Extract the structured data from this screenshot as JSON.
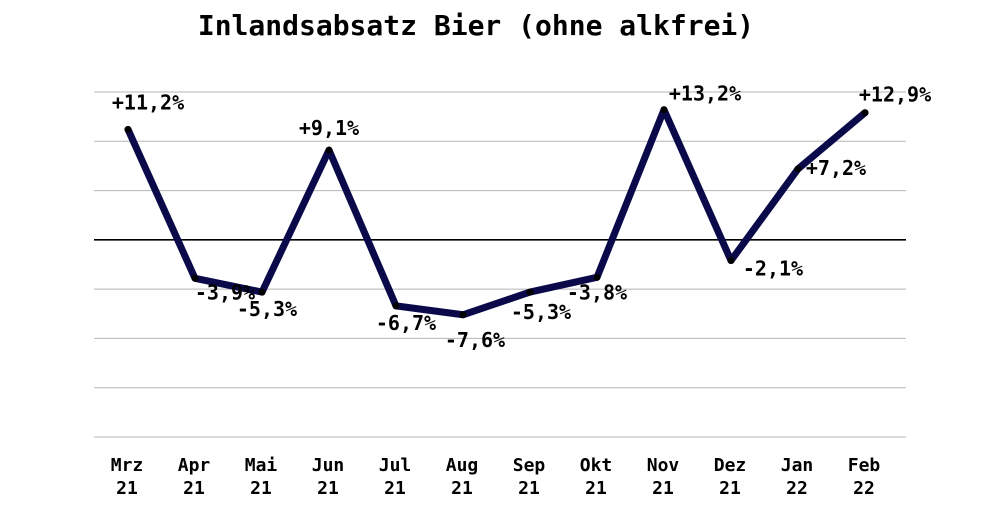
{
  "chart_data": {
    "type": "line",
    "title": "Inlandsabsatz Bier (ohne alkfrei)",
    "categories": [
      [
        "Mrz",
        "21"
      ],
      [
        "Apr",
        "21"
      ],
      [
        "Mai",
        "21"
      ],
      [
        "Jun",
        "21"
      ],
      [
        "Jul",
        "21"
      ],
      [
        "Aug",
        "21"
      ],
      [
        "Sep",
        "21"
      ],
      [
        "Okt",
        "21"
      ],
      [
        "Nov",
        "21"
      ],
      [
        "Dez",
        "21"
      ],
      [
        "Jan",
        "22"
      ],
      [
        "Feb",
        "22"
      ]
    ],
    "values": [
      11.2,
      -3.9,
      -5.3,
      9.1,
      -6.7,
      -7.6,
      -5.3,
      -3.8,
      13.2,
      -2.1,
      7.2,
      12.9
    ],
    "data_labels": [
      "+11,2%",
      "-3,9%",
      "-5,3%",
      "+9,1%",
      "-6,7%",
      "-7,6%",
      "-5,3%",
      "-3,8%",
      "+13,2%",
      "-2,1%",
      "+7,2%",
      "+12,9%"
    ],
    "ylim": [
      -20,
      15
    ],
    "grid": true,
    "line_color": "#0a0a4a"
  }
}
